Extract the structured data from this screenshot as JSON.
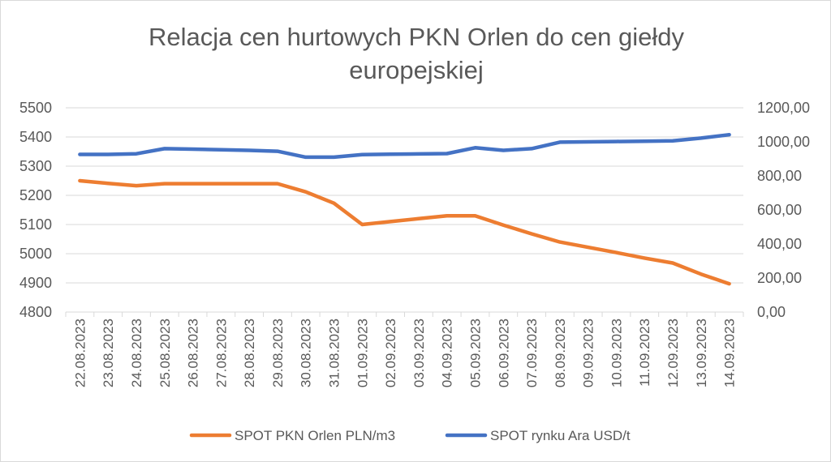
{
  "chart_data": {
    "type": "line",
    "title": [
      "Relacja cen hurtowych PKN Orlen do cen giełdy",
      "europejskiej"
    ],
    "categories": [
      "22.08.2023",
      "23.08.2023",
      "24.08.2023",
      "25.08.2023",
      "26.08.2023",
      "27.08.2023",
      "28.08.2023",
      "29.08.2023",
      "30.08.2023",
      "31.08.2023",
      "01.09.2023",
      "02.09.2023",
      "03.09.2023",
      "04.09.2023",
      "05.09.2023",
      "06.09.2023",
      "07.09.2023",
      "08.09.2023",
      "09.09.2023",
      "10.09.2023",
      "11.09.2023",
      "12.09.2023",
      "13.09.2023",
      "14.09.2023"
    ],
    "y_left": {
      "min": 4800,
      "max": 5500,
      "step": 100,
      "ticks": [
        "4800",
        "4900",
        "5000",
        "5100",
        "5200",
        "5300",
        "5400",
        "5500"
      ]
    },
    "y_right": {
      "min": 0,
      "max": 1200,
      "step": 200,
      "ticks": [
        "0,00",
        "200,00",
        "400,00",
        "600,00",
        "800,00",
        "1000,00",
        "1200,00"
      ]
    },
    "grid": true,
    "legend_position": "bottom",
    "series": [
      {
        "name": "SPOT PKN Orlen PLN/m3",
        "axis": "left",
        "color": "#ED7D31",
        "values": [
          5250,
          5241,
          5233,
          5240,
          5240,
          5240,
          5240,
          5240,
          5212,
          5173,
          5100,
          5110,
          5120,
          5130,
          5130,
          5098,
          5068,
          5040,
          5022,
          5004,
          4985,
          4968,
          4930,
          4897
        ]
      },
      {
        "name": "SPOT rynku Ara USD/t",
        "axis": "right",
        "color": "#4472C4",
        "values": [
          926,
          926,
          930,
          960,
          957,
          954,
          950,
          945,
          910,
          910,
          925,
          927,
          929,
          931,
          965,
          950,
          960,
          998,
          1000,
          1002,
          1004,
          1006,
          1022,
          1042
        ]
      }
    ]
  }
}
